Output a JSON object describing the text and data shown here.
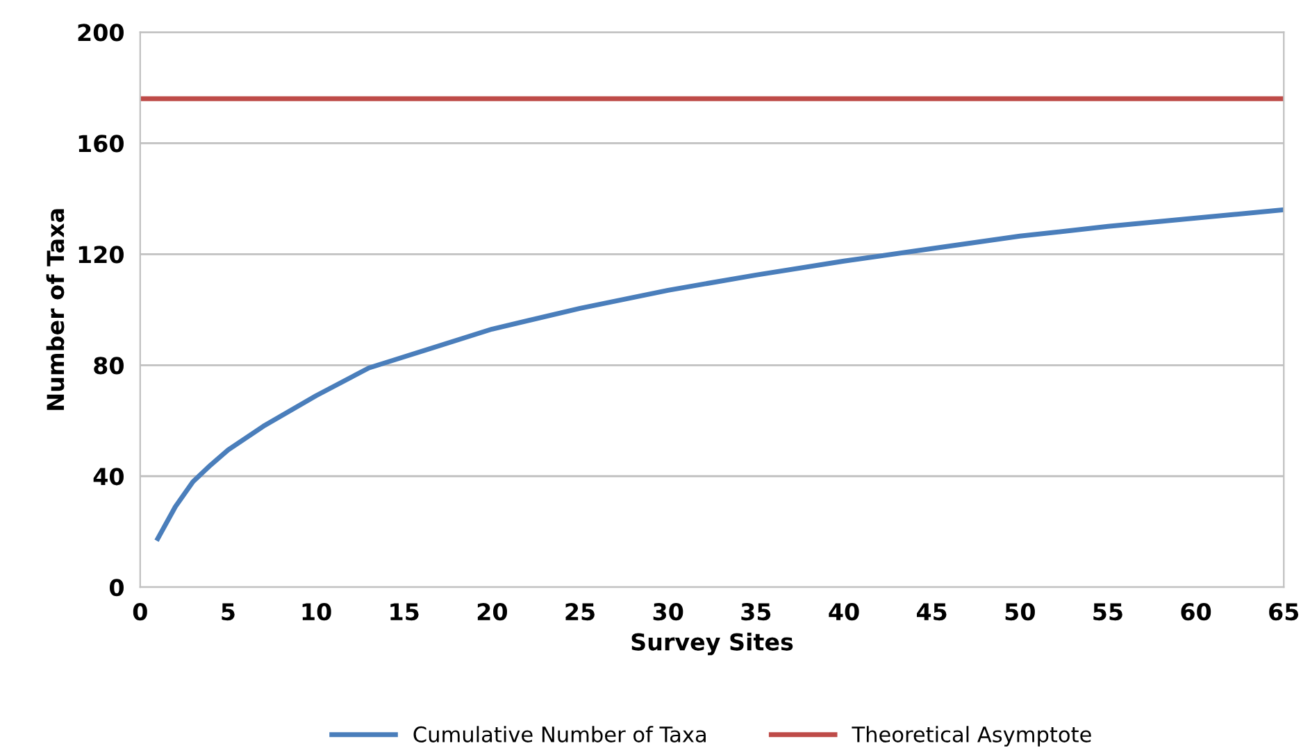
{
  "chart_data": {
    "type": "line",
    "xlabel": "Survey Sites",
    "ylabel": "Number of Taxa",
    "xlim": [
      0,
      65
    ],
    "xticks": [
      0,
      5,
      10,
      15,
      20,
      25,
      30,
      35,
      40,
      45,
      50,
      55,
      60,
      65
    ],
    "ylim": [
      0,
      200
    ],
    "yticks": [
      0,
      40,
      80,
      120,
      160,
      200
    ],
    "grid": "y",
    "legend": "bottom",
    "marker": "none",
    "line_style": "solid",
    "series": [
      {
        "name": "Cumulative Number of Taxa",
        "color": "#4a7ebb",
        "x": [
          1,
          2,
          3,
          4,
          5,
          7,
          10,
          13,
          15,
          20,
          25,
          30,
          35,
          40,
          45,
          50,
          55,
          60,
          65
        ],
        "values": [
          17.5,
          29,
          38,
          44,
          49.5,
          58,
          69,
          79,
          83,
          93,
          100.5,
          107,
          112.5,
          117.5,
          122,
          126.5,
          130,
          133,
          136
        ]
      },
      {
        "name": "Theoretical Asymptote",
        "color": "#be4b48",
        "x": [
          0,
          65
        ],
        "values": [
          176,
          176
        ]
      }
    ]
  }
}
